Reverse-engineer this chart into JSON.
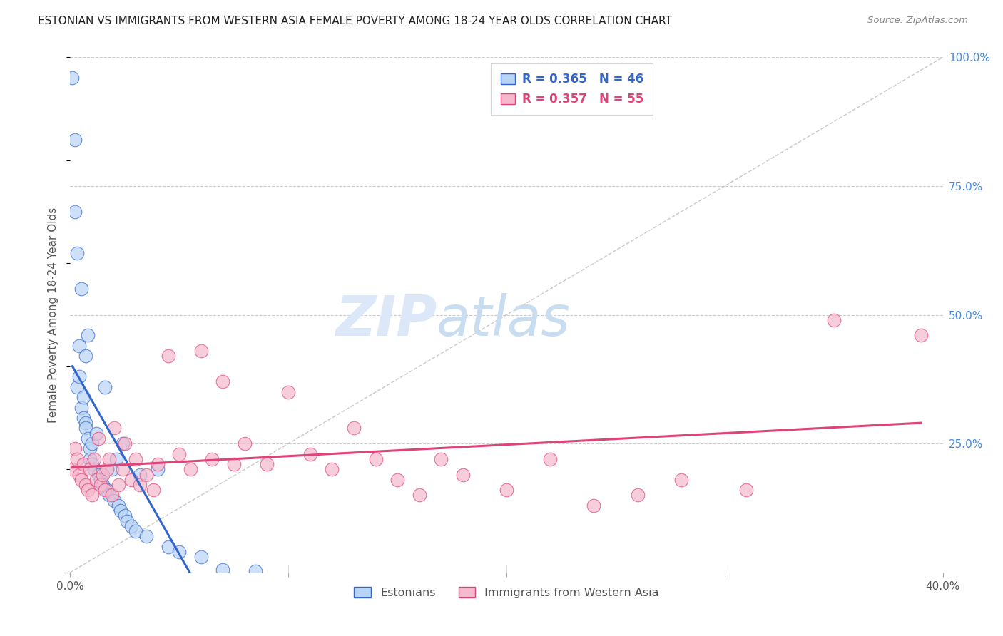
{
  "title": "ESTONIAN VS IMMIGRANTS FROM WESTERN ASIA FEMALE POVERTY AMONG 18-24 YEAR OLDS CORRELATION CHART",
  "source": "Source: ZipAtlas.com",
  "ylabel": "Female Poverty Among 18-24 Year Olds",
  "scatter_color_est": "#b8d4f5",
  "scatter_color_imm": "#f5b8cc",
  "line_color_est": "#3366cc",
  "line_color_imm": "#dd4477",
  "diag_color": "#bbbbbb",
  "watermark_zip": "ZIP",
  "watermark_atlas": "atlas",
  "background_color": "#ffffff",
  "grid_color": "#cccccc",
  "xlim": [
    0.0,
    0.4
  ],
  "ylim": [
    0.0,
    1.0
  ],
  "yticks": [
    0.25,
    0.5,
    0.75,
    1.0
  ],
  "ytick_labels": [
    "25.0%",
    "50.0%",
    "75.0%",
    "100.0%"
  ],
  "xtick_positions": [
    0.0,
    0.1,
    0.2,
    0.3,
    0.4
  ],
  "legend_R_est": "0.365",
  "legend_N_est": "46",
  "legend_R_imm": "0.357",
  "legend_N_imm": "55",
  "est_x": [
    0.001,
    0.002,
    0.002,
    0.003,
    0.003,
    0.004,
    0.004,
    0.005,
    0.005,
    0.006,
    0.006,
    0.007,
    0.007,
    0.007,
    0.008,
    0.008,
    0.009,
    0.009,
    0.01,
    0.01,
    0.011,
    0.012,
    0.013,
    0.014,
    0.015,
    0.016,
    0.017,
    0.018,
    0.019,
    0.02,
    0.021,
    0.022,
    0.023,
    0.024,
    0.025,
    0.026,
    0.028,
    0.03,
    0.032,
    0.035,
    0.04,
    0.045,
    0.05,
    0.06,
    0.07,
    0.085
  ],
  "est_y": [
    0.96,
    0.84,
    0.7,
    0.62,
    0.36,
    0.44,
    0.38,
    0.55,
    0.32,
    0.3,
    0.34,
    0.29,
    0.42,
    0.28,
    0.46,
    0.26,
    0.24,
    0.22,
    0.25,
    0.21,
    0.2,
    0.27,
    0.19,
    0.18,
    0.17,
    0.36,
    0.16,
    0.15,
    0.2,
    0.14,
    0.22,
    0.13,
    0.12,
    0.25,
    0.11,
    0.1,
    0.09,
    0.08,
    0.19,
    0.07,
    0.2,
    0.05,
    0.04,
    0.03,
    0.005,
    0.002
  ],
  "imm_x": [
    0.001,
    0.002,
    0.003,
    0.004,
    0.005,
    0.006,
    0.007,
    0.008,
    0.009,
    0.01,
    0.011,
    0.012,
    0.013,
    0.014,
    0.015,
    0.016,
    0.017,
    0.018,
    0.019,
    0.02,
    0.022,
    0.024,
    0.025,
    0.028,
    0.03,
    0.032,
    0.035,
    0.038,
    0.04,
    0.045,
    0.05,
    0.055,
    0.06,
    0.065,
    0.07,
    0.075,
    0.08,
    0.09,
    0.1,
    0.11,
    0.12,
    0.13,
    0.14,
    0.15,
    0.16,
    0.17,
    0.18,
    0.2,
    0.22,
    0.24,
    0.26,
    0.28,
    0.31,
    0.35,
    0.39
  ],
  "imm_y": [
    0.2,
    0.24,
    0.22,
    0.19,
    0.18,
    0.21,
    0.17,
    0.16,
    0.2,
    0.15,
    0.22,
    0.18,
    0.26,
    0.17,
    0.19,
    0.16,
    0.2,
    0.22,
    0.15,
    0.28,
    0.17,
    0.2,
    0.25,
    0.18,
    0.22,
    0.17,
    0.19,
    0.16,
    0.21,
    0.42,
    0.23,
    0.2,
    0.43,
    0.22,
    0.37,
    0.21,
    0.25,
    0.21,
    0.35,
    0.23,
    0.2,
    0.28,
    0.22,
    0.18,
    0.15,
    0.22,
    0.19,
    0.16,
    0.22,
    0.13,
    0.15,
    0.18,
    0.16,
    0.49,
    0.46
  ]
}
